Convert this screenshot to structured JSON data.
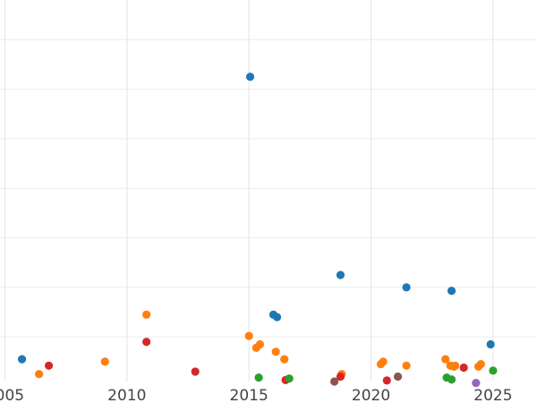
{
  "chart_data": {
    "type": "scatter",
    "title": "",
    "xlabel": "",
    "ylabel": "",
    "x_ticks": [
      "2005",
      "2010",
      "2015",
      "2020",
      "2025"
    ],
    "x_tick_values": [
      2005,
      2010,
      2015,
      2020,
      2025
    ],
    "xlim": [
      2004.8,
      2026.8
    ],
    "ylim": [
      0,
      7.7
    ],
    "y_gridlines": [
      0.9,
      1.9,
      2.9,
      3.9,
      4.9,
      5.9,
      6.9,
      7.9
    ],
    "y_tick_labels_visible": false,
    "grid": true,
    "legend": "none",
    "series": [
      {
        "color": "#1f77b4",
        "points": [
          [
            2005.7,
            0.45
          ],
          [
            2015.05,
            6.15
          ],
          [
            2016.0,
            1.35
          ],
          [
            2016.15,
            1.3
          ],
          [
            2018.75,
            2.15
          ],
          [
            2021.45,
            1.9
          ],
          [
            2023.3,
            1.83
          ],
          [
            2024.9,
            0.75
          ]
        ]
      },
      {
        "color": "#ff7f0e",
        "points": [
          [
            2006.4,
            0.15
          ],
          [
            2009.1,
            0.4
          ],
          [
            2010.8,
            1.35
          ],
          [
            2015.0,
            0.92
          ],
          [
            2015.3,
            0.68
          ],
          [
            2015.45,
            0.75
          ],
          [
            2016.1,
            0.6
          ],
          [
            2016.45,
            0.45
          ],
          [
            2018.8,
            0.15
          ],
          [
            2020.4,
            0.35
          ],
          [
            2020.5,
            0.4
          ],
          [
            2021.45,
            0.32
          ],
          [
            2023.05,
            0.45
          ],
          [
            2023.25,
            0.32
          ],
          [
            2023.4,
            0.3
          ],
          [
            2023.45,
            0.32
          ],
          [
            2024.4,
            0.3
          ],
          [
            2024.5,
            0.35
          ]
        ]
      },
      {
        "color": "#d62728",
        "points": [
          [
            2006.8,
            0.32
          ],
          [
            2010.8,
            0.8
          ],
          [
            2012.8,
            0.2
          ],
          [
            2016.5,
            0.03
          ],
          [
            2018.75,
            0.1
          ],
          [
            2020.65,
            0.02
          ],
          [
            2023.8,
            0.28
          ]
        ]
      },
      {
        "color": "#2ca02c",
        "points": [
          [
            2015.4,
            0.08
          ],
          [
            2016.65,
            0.06
          ],
          [
            2023.1,
            0.08
          ],
          [
            2023.3,
            0.04
          ],
          [
            2025.0,
            0.22
          ]
        ]
      },
      {
        "color": "#8c564b",
        "points": [
          [
            2018.5,
            0.0
          ],
          [
            2021.1,
            0.1
          ]
        ]
      },
      {
        "color": "#9467bd",
        "points": [
          [
            2024.3,
            -0.03
          ]
        ]
      }
    ]
  }
}
